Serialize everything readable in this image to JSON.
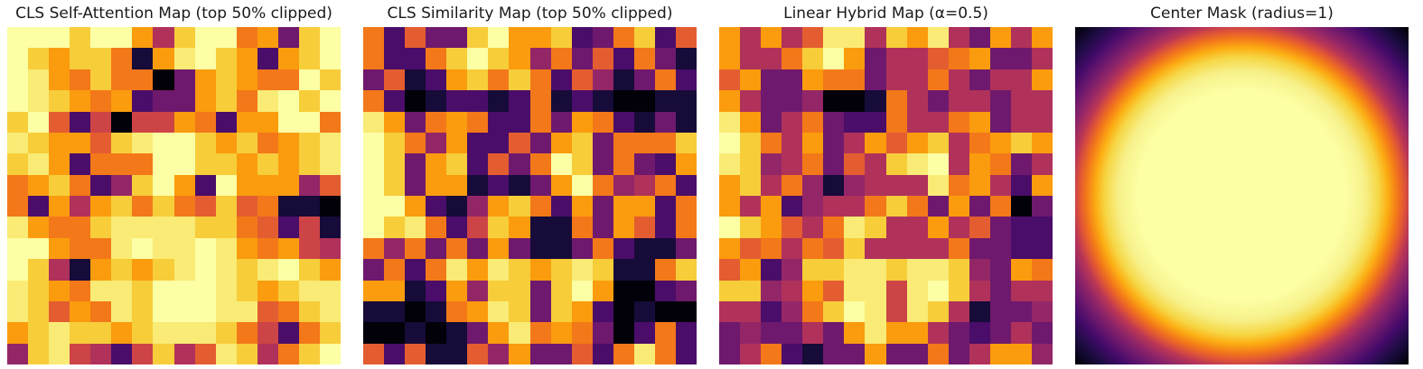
{
  "figure": {
    "background": "#ffffff",
    "colormap": "inferno",
    "panel_count": 4
  },
  "chart_data": [
    {
      "type": "heatmap",
      "title": "CLS Self-Attention Map (top 50% clipped)",
      "grid_size": [
        16,
        16
      ],
      "colormap": "inferno",
      "value_range": [
        0,
        1
      ],
      "legend": "none",
      "axes": "off",
      "values": [
        [
          1,
          1,
          1,
          0.88,
          1,
          1,
          0.78,
          0.47,
          0.88,
          1,
          1,
          0.7,
          0.78,
          0.31,
          0.88,
          1
        ],
        [
          1,
          0.88,
          0.78,
          0.88,
          0.88,
          0.7,
          0.1,
          0.78,
          0.95,
          1,
          0.88,
          0.78,
          0.22,
          0.78,
          0.88,
          1
        ],
        [
          1,
          0.95,
          0.78,
          0.7,
          0.88,
          0.7,
          0.7,
          0.01,
          0.31,
          0.78,
          0.88,
          0.78,
          0.7,
          0.7,
          1,
          0.88
        ],
        [
          1,
          0.95,
          0.88,
          0.78,
          0.7,
          0.78,
          0.22,
          0.31,
          0.31,
          0.78,
          0.88,
          0.7,
          0.95,
          1,
          0.88,
          1
        ],
        [
          0.88,
          1,
          0.63,
          0.22,
          0.55,
          0.01,
          0.55,
          0.55,
          0.78,
          0.7,
          0.22,
          0.78,
          0.78,
          1,
          1,
          0.7
        ],
        [
          0.95,
          0.88,
          0.78,
          0.78,
          0.63,
          0.88,
          0.95,
          1,
          1,
          0.88,
          0.78,
          0.88,
          0.7,
          0.78,
          0.88,
          0.95
        ],
        [
          0.88,
          0.95,
          0.78,
          0.22,
          0.7,
          0.7,
          0.7,
          1,
          1,
          0.88,
          0.88,
          0.78,
          0.88,
          0.78,
          0.88,
          0.95
        ],
        [
          0.7,
          0.78,
          0.88,
          0.7,
          0.22,
          0.4,
          0.88,
          1,
          0.78,
          0.22,
          1,
          0.78,
          0.78,
          0.78,
          0.4,
          0.63
        ],
        [
          0.7,
          0.22,
          0.78,
          0.47,
          0.78,
          0.88,
          0.7,
          0.88,
          0.7,
          0.63,
          0.88,
          0.63,
          0.7,
          0.1,
          0.1,
          0.01
        ],
        [
          0.95,
          0.78,
          0.7,
          0.7,
          0.88,
          0.95,
          0.95,
          0.95,
          0.95,
          0.88,
          0.88,
          0.7,
          0.63,
          0.22,
          0.55,
          0.1
        ],
        [
          1,
          1,
          0.78,
          0.7,
          0.7,
          0.95,
          1,
          0.95,
          0.95,
          1,
          0.95,
          0.78,
          0.7,
          0.78,
          0.55,
          0.47
        ],
        [
          1,
          0.88,
          0.47,
          0.1,
          0.78,
          0.88,
          0.78,
          0.88,
          0.95,
          1,
          0.95,
          0.88,
          0.95,
          1,
          0.88,
          0.78
        ],
        [
          0.95,
          0.88,
          0.78,
          0.7,
          0.95,
          0.95,
          0.88,
          1,
          1,
          1,
          0.95,
          0.88,
          0.78,
          0.88,
          0.95,
          0.95
        ],
        [
          0.95,
          0.88,
          0.63,
          0.78,
          0.7,
          0.95,
          0.88,
          1,
          1,
          1,
          0.95,
          0.95,
          0.63,
          0.7,
          0.88,
          0.95
        ],
        [
          0.78,
          0.88,
          0.95,
          0.88,
          0.88,
          0.78,
          0.88,
          0.95,
          0.95,
          0.95,
          0.88,
          0.7,
          0.55,
          0.22,
          0.7,
          0.88
        ],
        [
          0.4,
          0.88,
          0.95,
          0.55,
          0.47,
          0.22,
          0.55,
          0.88,
          0.47,
          0.63,
          0.95,
          0.88,
          0.47,
          0.7,
          0.88,
          1
        ]
      ]
    },
    {
      "type": "heatmap",
      "title": "CLS Similarity Map (top 50% clipped)",
      "grid_size": [
        16,
        16
      ],
      "colormap": "inferno",
      "value_range": [
        0,
        1
      ],
      "legend": "none",
      "axes": "off",
      "values": [
        [
          0.7,
          0.22,
          0.63,
          0.31,
          0.31,
          0.88,
          1,
          0.78,
          0.78,
          0.88,
          0.22,
          0.31,
          0.7,
          0.88,
          0.22,
          0.63
        ],
        [
          0.7,
          0.22,
          0.22,
          0.7,
          0.88,
          1,
          0.88,
          0.78,
          0.4,
          0.7,
          0.31,
          0.63,
          0.22,
          0.7,
          0.31,
          0.1
        ],
        [
          0.31,
          0.63,
          0.1,
          0.22,
          0.78,
          0.88,
          0.7,
          0.88,
          0.7,
          0.22,
          0.63,
          0.4,
          0.1,
          0.31,
          0.7,
          0.22
        ],
        [
          0.7,
          0.22,
          0.01,
          0.1,
          0.22,
          0.22,
          0.1,
          0.22,
          0.7,
          0.1,
          0.22,
          0.1,
          0.01,
          0.01,
          0.1,
          0.1
        ],
        [
          0.95,
          0.78,
          0.31,
          0.7,
          0.78,
          0.7,
          0.22,
          0.22,
          0.7,
          0.31,
          0.78,
          0.7,
          0.22,
          0.1,
          0.31,
          0.1
        ],
        [
          1,
          0.88,
          0.7,
          0.4,
          0.78,
          0.22,
          0.22,
          0.63,
          0.31,
          0.78,
          0.88,
          0.31,
          0.7,
          0.7,
          0.7,
          0.88
        ],
        [
          1,
          0.88,
          0.31,
          0.78,
          0.88,
          0.22,
          0.63,
          0.31,
          0.7,
          1,
          0.88,
          0.31,
          0.7,
          0.31,
          0.22,
          0.78
        ],
        [
          1,
          0.88,
          0.31,
          0.78,
          0.78,
          0.1,
          0.22,
          0.1,
          0.31,
          0.78,
          1,
          0.7,
          0.4,
          0.47,
          0.7,
          0.22
        ],
        [
          1,
          1,
          0.78,
          0.22,
          0.1,
          0.4,
          0.78,
          0.88,
          0.7,
          0.22,
          0.78,
          0.31,
          0.78,
          0.78,
          0.22,
          0.7
        ],
        [
          1,
          0.88,
          0.95,
          0.7,
          0.22,
          0.55,
          0.88,
          0.78,
          0.1,
          0.1,
          0.7,
          0.31,
          0.78,
          0.63,
          0.22,
          0.7
        ],
        [
          0.7,
          0.4,
          0.7,
          0.31,
          0.7,
          0.31,
          0.78,
          0.31,
          0.1,
          0.1,
          0.31,
          0.7,
          0.22,
          0.1,
          0.1,
          0.31
        ],
        [
          0.31,
          0.7,
          0.22,
          0.7,
          0.95,
          0.78,
          0.95,
          0.88,
          0.78,
          0.88,
          0.95,
          0.88,
          0.1,
          0.1,
          0.7,
          0.88
        ],
        [
          0.78,
          0.78,
          0.1,
          0.22,
          0.78,
          0.4,
          0.88,
          0.88,
          0.31,
          0.88,
          1,
          0.78,
          0.01,
          0.01,
          0.22,
          0.31
        ],
        [
          0.1,
          0.1,
          0.01,
          0.1,
          0.7,
          0.78,
          0.95,
          0.88,
          0.31,
          0.88,
          0.78,
          0.22,
          0.01,
          0.1,
          0.01,
          0.01
        ],
        [
          0.01,
          0.01,
          0.1,
          0.01,
          0.1,
          0.31,
          0.78,
          0.95,
          0.7,
          0.78,
          0.7,
          0.31,
          0.01,
          0.22,
          0.7,
          0.22
        ],
        [
          0.63,
          0.22,
          0.63,
          0.1,
          0.1,
          0.63,
          0.4,
          0.78,
          0.31,
          0.31,
          0.63,
          0.22,
          0.7,
          0.95,
          0.7,
          0.22
        ]
      ]
    },
    {
      "type": "heatmap",
      "title": "Linear Hybrid Map (α=0.5)",
      "alpha": 0.5,
      "grid_size": [
        16,
        16
      ],
      "colormap": "inferno",
      "value_range": [
        0,
        1
      ],
      "legend": "none",
      "axes": "off",
      "values": [
        [
          0.78,
          0.47,
          0.78,
          0.47,
          0.63,
          0.95,
          0.95,
          0.47,
          0.88,
          0.78,
          0.95,
          0.47,
          0.31,
          0.78,
          0.47,
          0.78
        ],
        [
          0.78,
          0.47,
          0.47,
          0.7,
          0.88,
          1,
          0.78,
          0.31,
          0.47,
          0.47,
          0.63,
          0.7,
          0.78,
          0.31,
          0.31,
          0.47
        ],
        [
          0.63,
          0.78,
          0.31,
          0.31,
          0.78,
          0.7,
          0.7,
          0.31,
          0.47,
          0.47,
          0.7,
          0.47,
          0.31,
          0.47,
          0.47,
          0.78
        ],
        [
          0.78,
          0.47,
          0.31,
          0.31,
          0.4,
          0.01,
          0.01,
          0.1,
          0.7,
          0.47,
          0.31,
          0.47,
          0.47,
          0.31,
          0.47,
          0.47
        ],
        [
          0.95,
          0.78,
          0.31,
          0.47,
          0.7,
          0.31,
          0.22,
          0.22,
          0.7,
          0.47,
          0.47,
          0.7,
          0.78,
          0.31,
          0.47,
          0.47
        ],
        [
          1,
          0.88,
          0.7,
          0.47,
          0.78,
          0.31,
          0.47,
          0.78,
          0.63,
          0.78,
          0.88,
          0.47,
          0.7,
          0.78,
          0.88,
          0.78
        ],
        [
          0.95,
          0.88,
          0.4,
          0.47,
          0.7,
          0.31,
          0.63,
          0.47,
          0.88,
          0.95,
          1,
          0.47,
          0.78,
          0.7,
          0.31,
          0.47
        ],
        [
          0.78,
          0.88,
          0.47,
          0.7,
          0.4,
          0.1,
          0.4,
          0.47,
          0.47,
          0.47,
          0.95,
          0.7,
          0.78,
          0.47,
          0.22,
          0.78
        ],
        [
          0.78,
          0.47,
          0.78,
          0.22,
          0.4,
          0.47,
          0.47,
          0.7,
          0.88,
          0.7,
          0.31,
          0.78,
          0.31,
          0.7,
          0.01,
          0.31
        ],
        [
          1,
          0.88,
          0.78,
          0.63,
          0.47,
          0.7,
          0.95,
          0.88,
          0.47,
          0.47,
          0.78,
          0.47,
          0.63,
          0.31,
          0.22,
          0.22
        ],
        [
          0.78,
          0.63,
          0.7,
          0.47,
          0.7,
          0.63,
          0.88,
          0.47,
          0.47,
          0.47,
          0.47,
          0.7,
          0.31,
          0.31,
          0.22,
          0.22
        ],
        [
          0.63,
          0.78,
          0.22,
          0.4,
          0.88,
          0.88,
          0.95,
          0.95,
          0.88,
          0.95,
          0.95,
          0.88,
          0.4,
          0.31,
          0.78,
          0.7
        ],
        [
          0.88,
          0.88,
          0.4,
          0.47,
          0.78,
          0.63,
          0.95,
          0.95,
          0.55,
          0.95,
          1,
          0.88,
          0.47,
          0.31,
          0.47,
          0.47
        ],
        [
          0.47,
          0.47,
          0.22,
          0.4,
          0.7,
          0.88,
          1,
          0.95,
          0.55,
          0.95,
          0.88,
          0.47,
          0.1,
          0.31,
          0.31,
          0.4
        ],
        [
          0.31,
          0.4,
          0.31,
          0.31,
          0.47,
          0.31,
          0.78,
          0.95,
          0.78,
          0.78,
          0.47,
          0.31,
          0.22,
          0.31,
          0.47,
          0.31
        ],
        [
          0.31,
          0.47,
          0.7,
          0.22,
          0.1,
          0.31,
          0.31,
          0.78,
          0.31,
          0.31,
          0.7,
          0.31,
          0.47,
          0.78,
          0.78,
          0.4
        ]
      ]
    },
    {
      "type": "heatmap",
      "subtype": "smooth_radial_mask",
      "title": "Center Mask (radius=1)",
      "radius": 1,
      "colormap": "inferno",
      "value_range": [
        0,
        1
      ],
      "center_value": 1,
      "corner_value": 0,
      "legend": "none",
      "axes": "off",
      "description": "Smooth radial mask: value 1 (pale yellow) at center falling to 0 (black) at the corners",
      "gradient_stops": [
        {
          "pos": 0,
          "color": "#fcffa4"
        },
        {
          "pos": 44,
          "color": "#fcffa4"
        },
        {
          "pos": 52,
          "color": "#f7f18b"
        },
        {
          "pos": 58,
          "color": "#f6d746"
        },
        {
          "pos": 62,
          "color": "#fcae13"
        },
        {
          "pos": 66,
          "color": "#f37819"
        },
        {
          "pos": 69,
          "color": "#e05536"
        },
        {
          "pos": 72,
          "color": "#bc3754"
        },
        {
          "pos": 76,
          "color": "#932667"
        },
        {
          "pos": 81,
          "color": "#6a176e"
        },
        {
          "pos": 86,
          "color": "#420a68"
        },
        {
          "pos": 92,
          "color": "#1b0c41"
        },
        {
          "pos": 100,
          "color": "#000004"
        }
      ]
    }
  ]
}
